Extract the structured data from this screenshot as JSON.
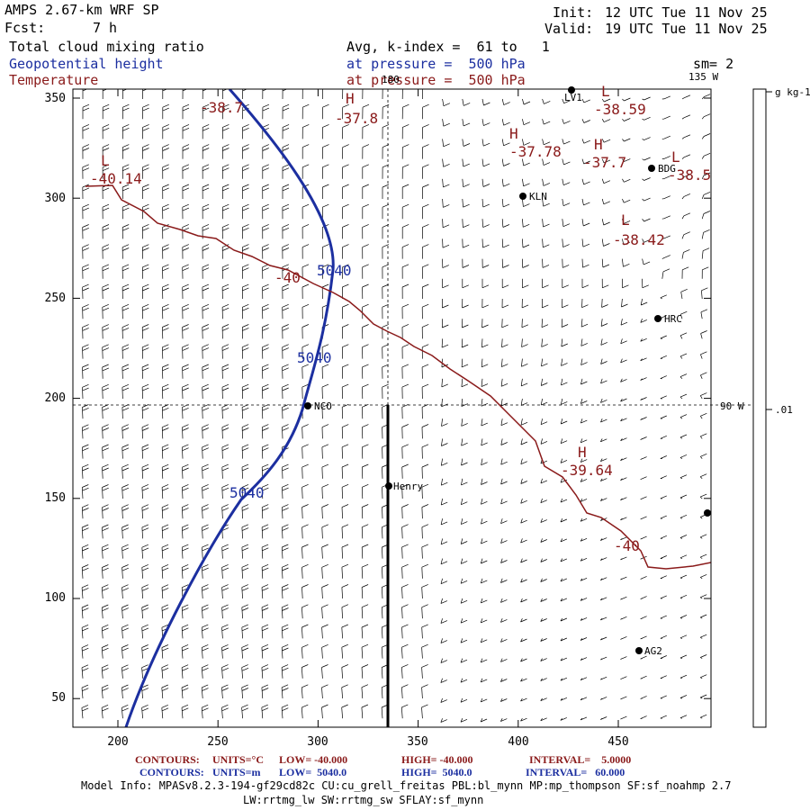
{
  "header": {
    "model": "AMPS 2.67-km WRF SP",
    "init_label": "Init:",
    "init": "12 UTC Tue 11 Nov 25",
    "fcst_label": "Fcst:",
    "fcst": "7 h",
    "valid_label": "Valid:",
    "valid": "19 UTC Tue 11 Nov 25",
    "field1": "Total cloud mixing ratio",
    "field1_desc": "Avg, k-index =  61 to   1",
    "field2": "Geopotential height",
    "field2_desc": "at pressure =  500 hPa",
    "field3": "Temperature",
    "field3_desc": "at pressure =  500 hPa",
    "smoothing": "sm= 2"
  },
  "map": {
    "x_ticks": [
      "200",
      "250",
      "300",
      "350",
      "400",
      "450"
    ],
    "y_ticks": [
      "350",
      "300",
      "250",
      "200",
      "150",
      "100",
      "50"
    ],
    "lon_labels": {
      "top": "180",
      "top_right": "135 W",
      "right": "90 W"
    },
    "colorbar": {
      "unit": "g kg-1",
      "value": ".01"
    },
    "stations": [
      {
        "name": "KLN"
      },
      {
        "name": "BDG"
      },
      {
        "name": "HRC"
      },
      {
        "name": "NCO"
      },
      {
        "name": "Henry"
      },
      {
        "name": "AG2"
      },
      {
        "name": "LV1"
      }
    ],
    "height_labels": [
      "5040",
      "5040",
      "5040"
    ],
    "temp_labels": [
      "-38.7",
      "-37.8",
      "-37.78",
      "-37.7",
      "-38.59",
      "-38.5",
      "-40.14",
      "-38.42",
      "-40",
      "-39.64",
      "-40"
    ],
    "hl_marks": [
      "L",
      "H",
      "H",
      "H",
      "L",
      "L",
      "L",
      "H"
    ]
  },
  "contours": {
    "temp": {
      "label": "CONTOURS:",
      "units": "UNITS=°C",
      "low": "LOW= -40.000",
      "high": "HIGH= -40.000",
      "interval": "INTERVAL=    5.0000"
    },
    "height": {
      "label": "CONTOURS:",
      "units": "UNITS=m",
      "low": "LOW=  5040.0",
      "high": "HIGH=  5040.0",
      "interval": "INTERVAL=   60.000"
    }
  },
  "model_info": {
    "line1": "Model Info: MPASv8.2.3-194-gf29cd82c CU:cu_grell_freitas PBL:bl_mynn MP:mp_thompson SF:sf_noahmp 2.7",
    "line2": "LW:rrtmg_lw SW:rrtmg_sw SFLAY:sf_mynn"
  },
  "colors": {
    "height": "#1c2fa0",
    "temperature": "#8a1a1a"
  }
}
